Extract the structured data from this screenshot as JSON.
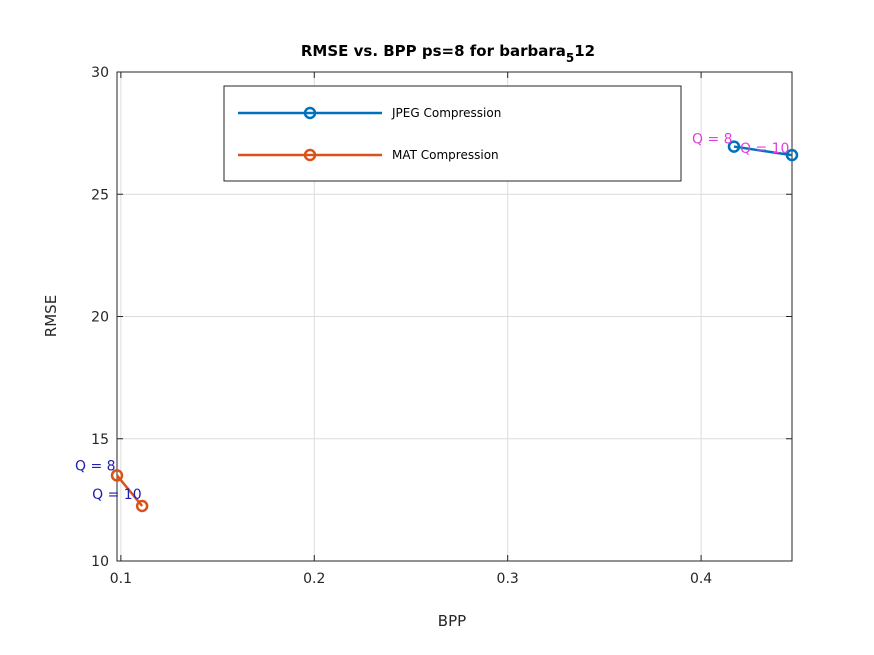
{
  "chart_data": {
    "type": "line",
    "title": "RMSE vs. BPP ps=8 for barbara",
    "title_subscript": "5",
    "title_suffix": "12",
    "xlabel": "BPP",
    "ylabel": "RMSE",
    "xlim": [
      0.098,
      0.447
    ],
    "ylim": [
      10,
      30
    ],
    "xticks": [
      0.1,
      0.2,
      0.3,
      0.4
    ],
    "xtick_labels": [
      "0.1",
      "0.2",
      "0.3",
      "0.4"
    ],
    "yticks": [
      10,
      15,
      20,
      25,
      30
    ],
    "ytick_labels": [
      "10",
      "15",
      "20",
      "25",
      "30"
    ],
    "grid": true,
    "legend_position": "top",
    "series": [
      {
        "name": "JPEG Compression",
        "color": "#0072BD",
        "marker": "circle",
        "x": [
          0.417,
          0.447
        ],
        "y": [
          26.95,
          26.6
        ],
        "labels": [
          "Q = 8",
          "Q = 10"
        ],
        "label_color": "#E040E0"
      },
      {
        "name": "MAT Compression",
        "color": "#D95319",
        "marker": "circle",
        "x": [
          0.098,
          0.111
        ],
        "y": [
          13.5,
          12.25
        ],
        "labels": [
          "Q = 8",
          "Q = 10"
        ],
        "label_color": "#2020B0"
      }
    ]
  }
}
